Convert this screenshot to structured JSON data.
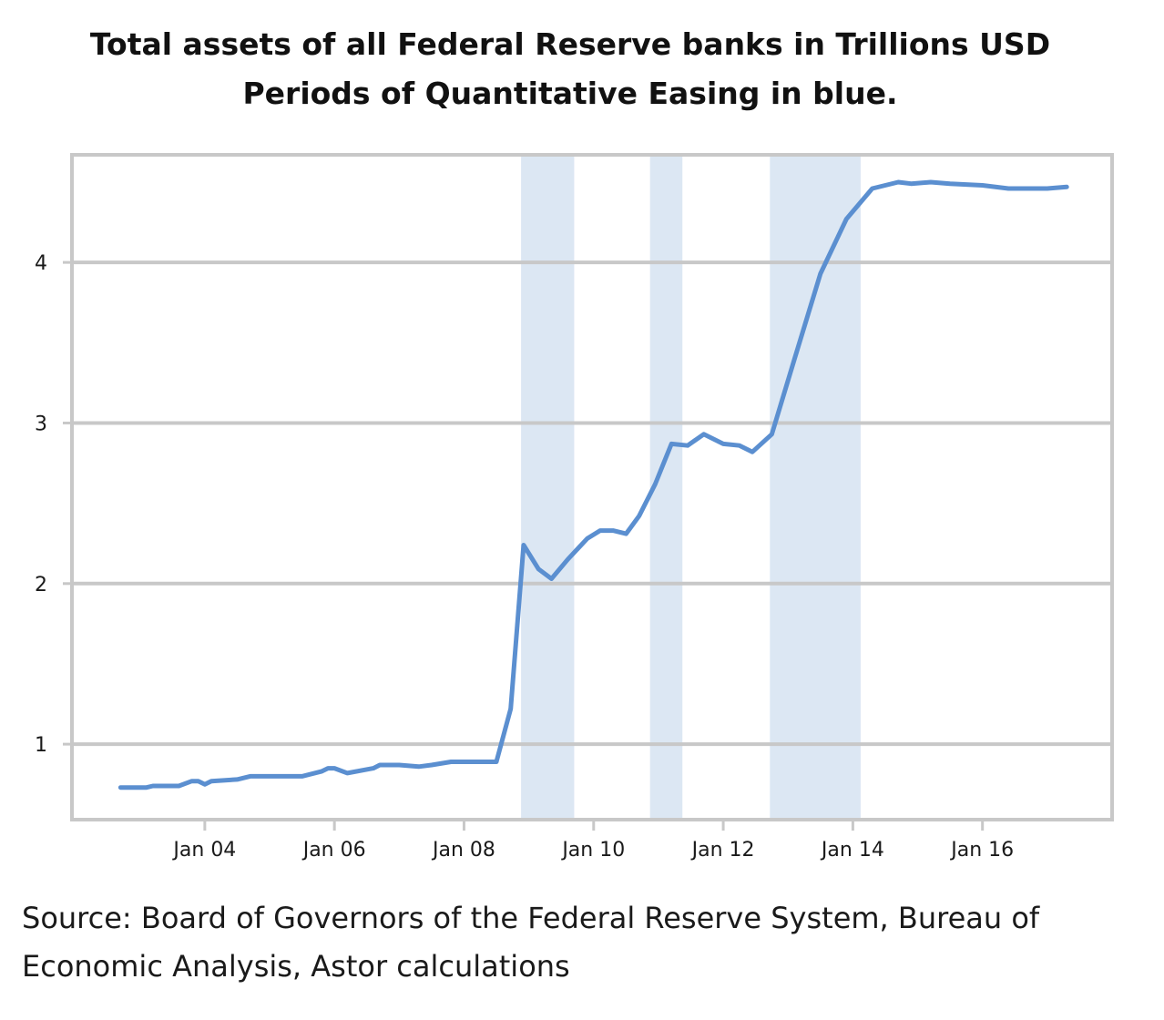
{
  "chart_data": {
    "type": "line",
    "title": "Total assets of all Federal Reserve banks in Trillions USD",
    "subtitle": "Periods of Quantitative Easing in blue.",
    "xlabel": "",
    "ylabel": "",
    "source": "Source: Board of Governors of the Federal Reserve System, Bureau of Economic Analysis, Astor calculations",
    "x_ticks": [
      {
        "year": 2004,
        "label": "Jan 04"
      },
      {
        "year": 2006,
        "label": "Jan 06"
      },
      {
        "year": 2008,
        "label": "Jan 08"
      },
      {
        "year": 2010,
        "label": "Jan 10"
      },
      {
        "year": 2012,
        "label": "Jan 12"
      },
      {
        "year": 2014,
        "label": "Jan 14"
      },
      {
        "year": 2016,
        "label": "Jan 16"
      }
    ],
    "y_ticks": [
      1,
      2,
      3,
      4
    ],
    "xlim": [
      2001.95,
      2018.0
    ],
    "ylim": [
      0.53,
      4.67
    ],
    "grid": true,
    "legend": "none",
    "line_color": "#5b8fd0",
    "shade_color": "#dce7f3",
    "frame_color": "#c8c8c8",
    "qe_periods": [
      {
        "start": 2008.88,
        "end": 2009.7
      },
      {
        "start": 2010.87,
        "end": 2011.37
      },
      {
        "start": 2012.72,
        "end": 2014.12
      }
    ],
    "series": [
      {
        "x": [
          2002.7,
          2003.1,
          2003.2,
          2003.6,
          2003.8,
          2003.9,
          2004.0,
          2004.1,
          2004.5,
          2004.7,
          2005.0,
          2005.5,
          2005.8,
          2005.9,
          2006.0,
          2006.2,
          2006.6,
          2006.7,
          2007.0,
          2007.3,
          2007.5,
          2007.8,
          2008.0,
          2008.25,
          2008.5,
          2008.72,
          2008.92,
          2009.15,
          2009.35,
          2009.6,
          2009.9,
          2010.1,
          2010.3,
          2010.5,
          2010.7,
          2010.95,
          2011.2,
          2011.45,
          2011.7,
          2012.0,
          2012.25,
          2012.45,
          2012.75,
          2013.1,
          2013.5,
          2013.9,
          2014.3,
          2014.7,
          2014.9,
          2015.2,
          2015.5,
          2016.0,
          2016.4,
          2016.7,
          2017.0,
          2017.3
        ],
        "y": [
          0.73,
          0.73,
          0.74,
          0.74,
          0.77,
          0.77,
          0.75,
          0.77,
          0.78,
          0.8,
          0.8,
          0.8,
          0.83,
          0.85,
          0.85,
          0.82,
          0.85,
          0.87,
          0.87,
          0.86,
          0.87,
          0.89,
          0.89,
          0.89,
          0.89,
          1.22,
          2.24,
          2.09,
          2.03,
          2.15,
          2.28,
          2.33,
          2.33,
          2.31,
          2.42,
          2.62,
          2.87,
          2.86,
          2.93,
          2.87,
          2.86,
          2.82,
          2.93,
          3.4,
          3.93,
          4.27,
          4.46,
          4.5,
          4.49,
          4.5,
          4.49,
          4.48,
          4.46,
          4.46,
          4.46,
          4.47
        ]
      }
    ]
  }
}
